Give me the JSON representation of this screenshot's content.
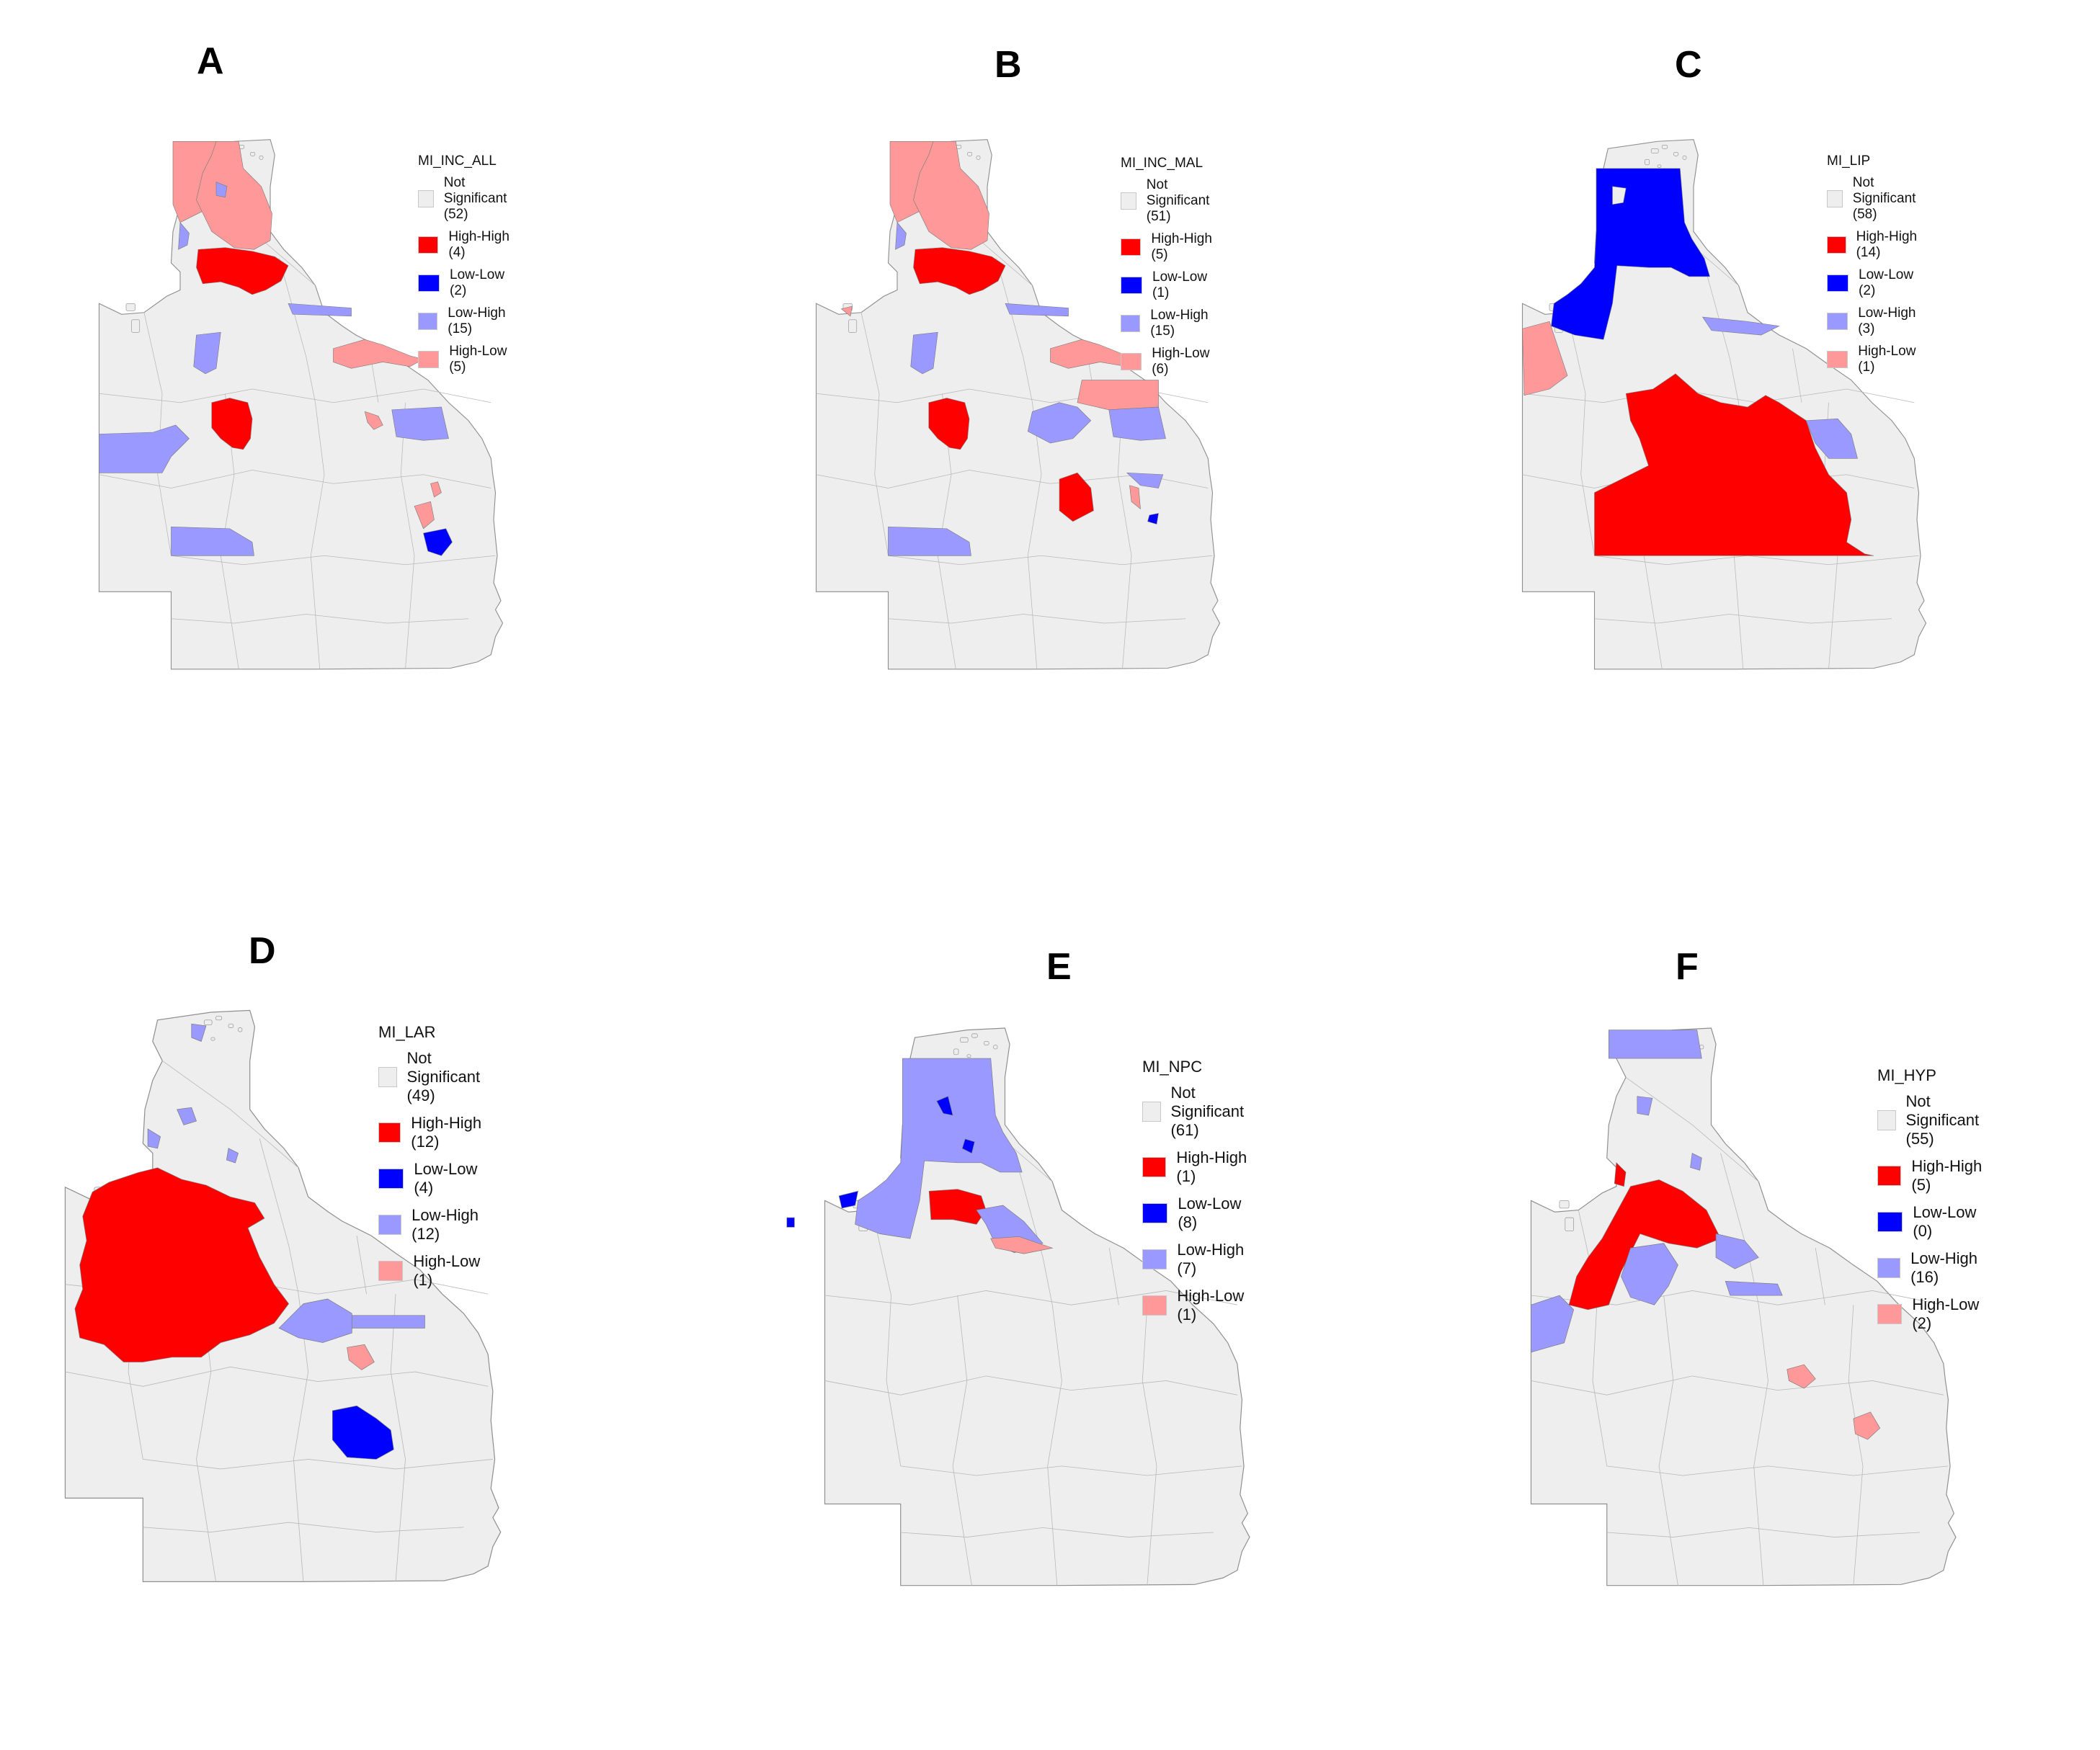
{
  "colors": {
    "not_significant": "#eeeeee",
    "high_high": "#ff0000",
    "low_low": "#0000ff",
    "low_high": "#9999ff",
    "high_low": "#ff9999",
    "border": "#a9a9a9"
  },
  "panels": [
    {
      "letter": "A",
      "legend_title": "MI_INC_ALL",
      "legend": [
        {
          "label": "Not Significant (52)",
          "category": "not_significant"
        },
        {
          "label": "High-High (4)",
          "category": "high_high"
        },
        {
          "label": "Low-Low (2)",
          "category": "low_low"
        },
        {
          "label": "Low-High (15)",
          "category": "low_high"
        },
        {
          "label": "High-Low (5)",
          "category": "high_low"
        }
      ]
    },
    {
      "letter": "B",
      "legend_title": "MI_INC_MAL",
      "legend": [
        {
          "label": "Not Significant (51)",
          "category": "not_significant"
        },
        {
          "label": "High-High (5)",
          "category": "high_high"
        },
        {
          "label": "Low-Low (1)",
          "category": "low_low"
        },
        {
          "label": "Low-High (15)",
          "category": "low_high"
        },
        {
          "label": "High-Low (6)",
          "category": "high_low"
        }
      ]
    },
    {
      "letter": "C",
      "legend_title": "MI_LIP",
      "legend": [
        {
          "label": "Not Significant (58)",
          "category": "not_significant"
        },
        {
          "label": "High-High (14)",
          "category": "high_high"
        },
        {
          "label": "Low-Low (2)",
          "category": "low_low"
        },
        {
          "label": "Low-High (3)",
          "category": "low_high"
        },
        {
          "label": "High-Low (1)",
          "category": "high_low"
        }
      ]
    },
    {
      "letter": "D",
      "legend_title": "MI_LAR",
      "legend": [
        {
          "label": "Not Significant (49)",
          "category": "not_significant"
        },
        {
          "label": "High-High (12)",
          "category": "high_high"
        },
        {
          "label": "Low-Low (4)",
          "category": "low_low"
        },
        {
          "label": "Low-High (12)",
          "category": "low_high"
        },
        {
          "label": "High-Low (1)",
          "category": "high_low"
        }
      ]
    },
    {
      "letter": "E",
      "legend_title": "MI_NPC",
      "legend": [
        {
          "label": "Not Significant (61)",
          "category": "not_significant"
        },
        {
          "label": "High-High (1)",
          "category": "high_high"
        },
        {
          "label": "Low-Low (8)",
          "category": "low_low"
        },
        {
          "label": "Low-High (7)",
          "category": "low_high"
        },
        {
          "label": "High-Low (1)",
          "category": "high_low"
        }
      ]
    },
    {
      "letter": "F",
      "legend_title": "MI_HYP",
      "legend": [
        {
          "label": "Not Significant (55)",
          "category": "not_significant"
        },
        {
          "label": "High-High (5)",
          "category": "high_high"
        },
        {
          "label": "Low-Low (0)",
          "category": "low_low"
        },
        {
          "label": "Low-High (16)",
          "category": "low_high"
        },
        {
          "label": "High-Low (2)",
          "category": "high_low"
        }
      ]
    }
  ]
}
